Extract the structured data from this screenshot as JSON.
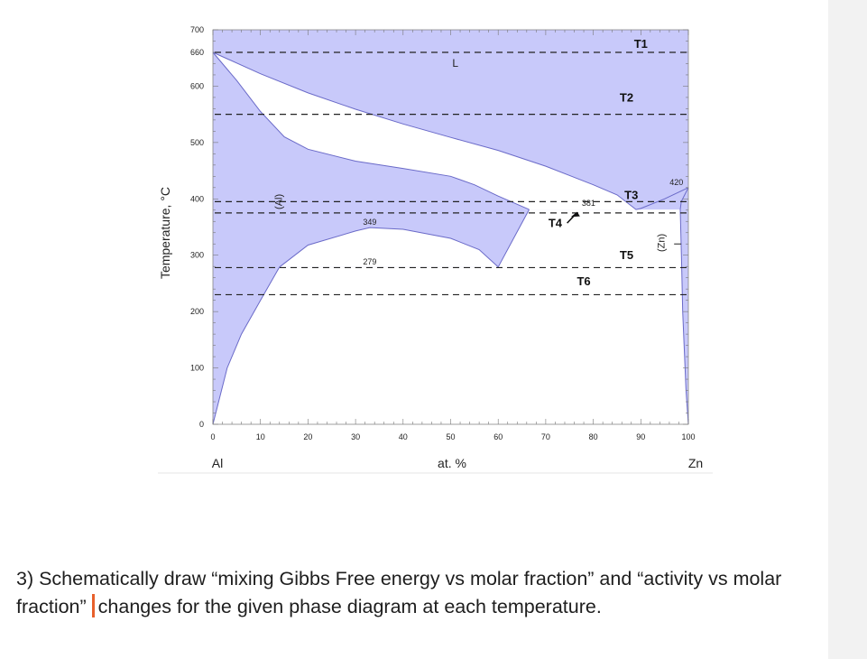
{
  "chart_data": {
    "type": "phase-diagram",
    "ylabel": "Temperature, °C",
    "xlabel": "at. %",
    "x_left_label": "Al",
    "x_right_label": "Zn",
    "xlim": [
      0,
      100
    ],
    "ylim": [
      0,
      700
    ],
    "x_ticks": [
      "0",
      "10",
      "20",
      "30",
      "40",
      "50",
      "60",
      "70",
      "80",
      "90",
      "100"
    ],
    "y_ticks": [
      "0",
      "100",
      "200",
      "300",
      "400",
      "500",
      "600",
      "660",
      "700"
    ],
    "phase_labels": {
      "liquid": "L",
      "al": "(Al)",
      "zn": "(Zn)"
    },
    "temperature_lines": [
      {
        "label": "T1",
        "T": 660
      },
      {
        "label": "T2",
        "T": 550
      },
      {
        "label": "T3",
        "T": 395
      },
      {
        "label": "T4",
        "T": 375
      },
      {
        "label": "T5",
        "T": 278
      },
      {
        "label": "T6",
        "T": 230
      }
    ],
    "annotations": [
      {
        "text": "420",
        "x": 97.5,
        "T": 420
      },
      {
        "text": "381",
        "x": 79,
        "T": 383
      },
      {
        "text": "349",
        "x": 33,
        "T": 349
      },
      {
        "text": "279",
        "x": 33,
        "T": 279
      }
    ],
    "boundaries": {
      "liquidus_al": [
        [
          0,
          660
        ],
        [
          10,
          622
        ],
        [
          20,
          588
        ],
        [
          30,
          559
        ],
        [
          40,
          533
        ],
        [
          50,
          509
        ],
        [
          60,
          486
        ],
        [
          70,
          458
        ],
        [
          80,
          425
        ],
        [
          85,
          407
        ],
        [
          89,
          381
        ],
        [
          90,
          383
        ],
        [
          95,
          400
        ],
        [
          100,
          420
        ]
      ],
      "solidus_al": [
        [
          0,
          660
        ],
        [
          5,
          610
        ],
        [
          10,
          555
        ],
        [
          15,
          510
        ],
        [
          20,
          488
        ],
        [
          30,
          467
        ],
        [
          40,
          454
        ],
        [
          50,
          440
        ],
        [
          55,
          425
        ],
        [
          60,
          405
        ],
        [
          66.5,
          381
        ]
      ],
      "miscibility_gap": [
        [
          14,
          279
        ],
        [
          20,
          318
        ],
        [
          30,
          343
        ],
        [
          33,
          349
        ],
        [
          40,
          346
        ],
        [
          50,
          330
        ],
        [
          56,
          310
        ],
        [
          60,
          279
        ]
      ],
      "al_solvus_low": [
        [
          0,
          0
        ],
        [
          3,
          100
        ],
        [
          6,
          160
        ],
        [
          10,
          220
        ],
        [
          14,
          279
        ]
      ],
      "eutectoid_right": [
        [
          60,
          279
        ],
        [
          66.5,
          381
        ]
      ],
      "zn_solvus": [
        [
          100,
          0
        ],
        [
          99.5,
          60
        ],
        [
          98.8,
          200
        ],
        [
          98.6,
          279
        ],
        [
          98.3,
          381
        ],
        [
          98.5,
          395
        ],
        [
          100,
          420
        ]
      ]
    }
  },
  "question_text_before": "3) Schematically draw “mixing Gibbs Free energy vs molar fraction” and “activity vs molar fraction”",
  "question_text_after": "changes for the given phase diagram at each temperature.",
  "colors": {
    "phase_fill": "#c8c9fa",
    "dash_line": "#222222",
    "caret": "#e8602c",
    "sidebar": "#f2f2f2"
  }
}
